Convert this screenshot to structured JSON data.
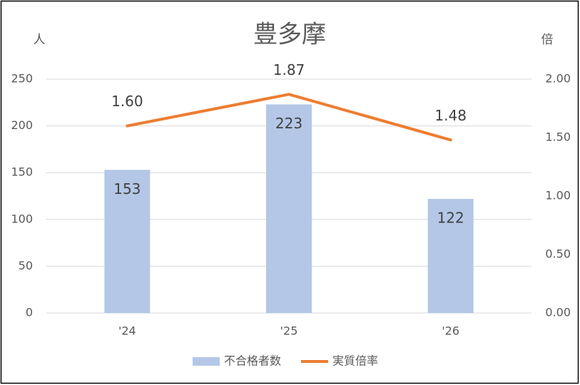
{
  "chart_data": {
    "type": "combo",
    "title": "豊多摩",
    "y_label": "人",
    "y2_label": "倍",
    "categories": [
      "'24",
      "'25",
      "'26"
    ],
    "series": [
      {
        "name": "不合格者数",
        "type": "bar",
        "color": "#b4c7e7",
        "values": [
          153,
          223,
          122
        ]
      },
      {
        "name": "実質倍率",
        "type": "line",
        "axis": "y2",
        "color": "#ed7d31",
        "values": [
          1.6,
          1.87,
          1.48
        ],
        "value_labels": [
          "1.60",
          "1.87",
          "1.48"
        ]
      }
    ],
    "ylim": [
      0,
      250
    ],
    "yticks": [
      0,
      50,
      100,
      150,
      200,
      250
    ],
    "y2lim": [
      0,
      2
    ],
    "y2ticks": [
      {
        "value": 0,
        "label": "0.00"
      },
      {
        "value": 0.5,
        "label": "0.50"
      },
      {
        "value": 1,
        "label": "1.00"
      },
      {
        "value": 1.5,
        "label": "1.50"
      },
      {
        "value": 2,
        "label": "2.00"
      }
    ],
    "grid": true,
    "legend": "bottom"
  }
}
